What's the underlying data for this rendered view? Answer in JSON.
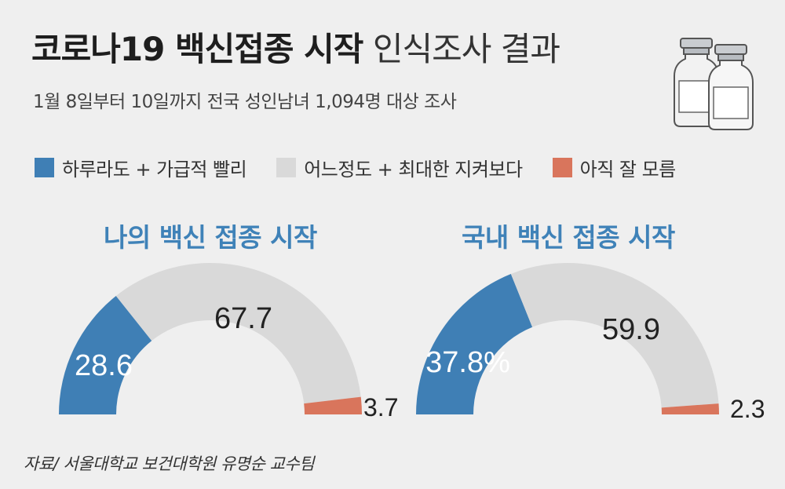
{
  "title": {
    "bold": "코로나19 백신접종 시작",
    "light": "인식조사 결과"
  },
  "subtitle": "1월 8일부터 10일까지 전국 성인남녀 1,094명 대상 조사",
  "legend": [
    {
      "label": "하루라도 + 가급적 빨리",
      "color": "#3f7fb5"
    },
    {
      "label": "어느정도 + 최대한 지켜보다",
      "color": "#d9d9d9"
    },
    {
      "label": "아직 잘 모름",
      "color": "#d9755c"
    }
  ],
  "source": "자료/ 서울대학교 보건대학원 유명순 교수팀",
  "icon": "vaccine-vials-icon",
  "chart_data": [
    {
      "type": "pie",
      "shape": "half-donut",
      "title": "나의 백신 접종 시작",
      "categories": [
        "하루라도 + 가급적 빨리",
        "어느정도 + 최대한 지켜보다",
        "아직 잘 모름"
      ],
      "values": [
        28.6,
        67.7,
        3.7
      ],
      "labels": [
        "28.6",
        "67.7",
        "3.7"
      ],
      "colors": [
        "#3f7fb5",
        "#d9d9d9",
        "#d9755c"
      ]
    },
    {
      "type": "pie",
      "shape": "half-donut",
      "title": "국내 백신 접종 시작",
      "categories": [
        "하루라도 + 가급적 빨리",
        "어느정도 + 최대한 지켜보다",
        "아직 잘 모름"
      ],
      "values": [
        37.8,
        59.9,
        2.3
      ],
      "labels": [
        "37.8%",
        "59.9",
        "2.3"
      ],
      "colors": [
        "#3f7fb5",
        "#d9d9d9",
        "#d9755c"
      ]
    }
  ]
}
